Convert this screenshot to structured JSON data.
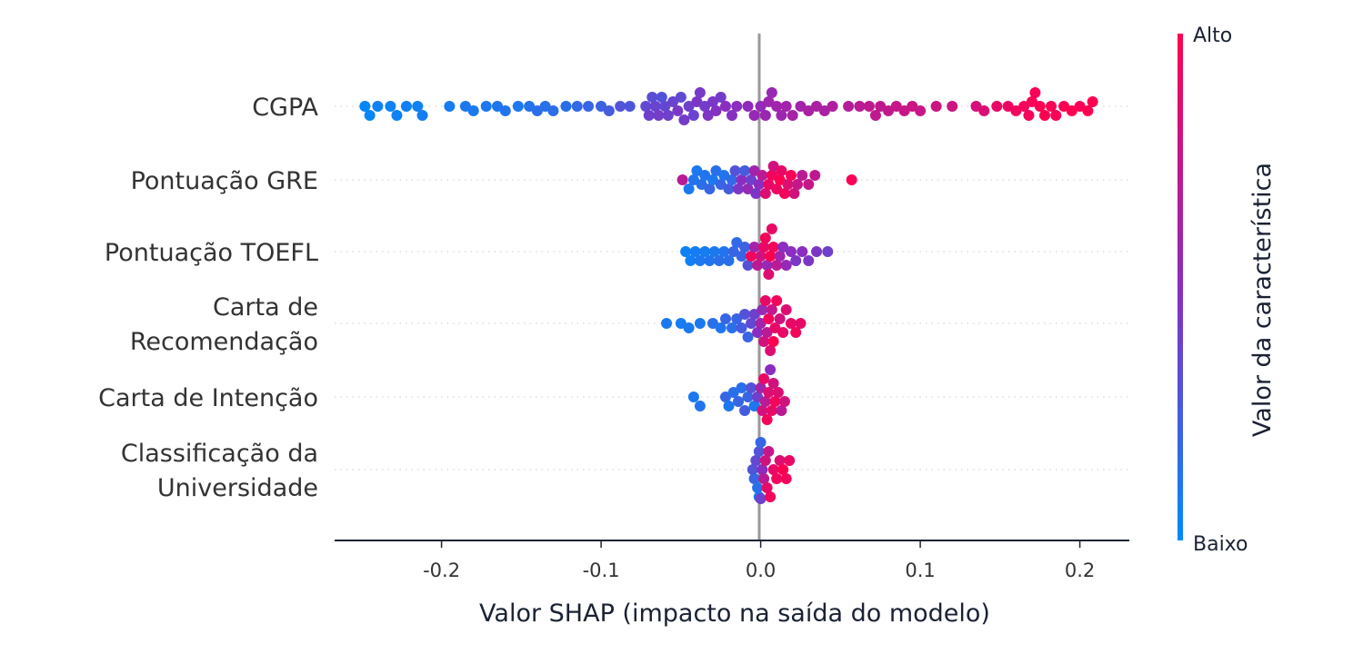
{
  "chart_data": {
    "type": "scatter",
    "subtype": "beeswarm",
    "xlabel": "Valor SHAP (impacto na saída do modelo)",
    "xlim": [
      -0.267,
      0.231
    ],
    "xticks": [
      "-0.2",
      "-0.1",
      "0.0",
      "0.1",
      "0.2"
    ],
    "xtick_values": [
      -0.2,
      -0.1,
      0.0,
      0.1,
      0.2
    ],
    "grid": false,
    "colorbar": {
      "label": "Valor da característica",
      "high": "Alto",
      "low": "Baixo",
      "low_color": "#008bfb",
      "mid_color": "#8a2dc0",
      "high_color": "#ff0051"
    },
    "features": [
      {
        "name": "CGPA",
        "label_lines": [
          "CGPA"
        ],
        "points": [
          [
            -0.248,
            0.02
          ],
          [
            -0.245,
            0.03
          ],
          [
            -0.24,
            0.05
          ],
          [
            -0.232,
            0.04
          ],
          [
            -0.228,
            0.05
          ],
          [
            -0.222,
            0.06
          ],
          [
            -0.215,
            0.05
          ],
          [
            -0.212,
            0.07
          ],
          [
            -0.195,
            0.08
          ],
          [
            -0.185,
            0.1
          ],
          [
            -0.18,
            0.09
          ],
          [
            -0.172,
            0.1
          ],
          [
            -0.165,
            0.11
          ],
          [
            -0.16,
            0.12
          ],
          [
            -0.152,
            0.1
          ],
          [
            -0.145,
            0.13
          ],
          [
            -0.14,
            0.15
          ],
          [
            -0.135,
            0.14
          ],
          [
            -0.13,
            0.16
          ],
          [
            -0.122,
            0.15
          ],
          [
            -0.115,
            0.18
          ],
          [
            -0.108,
            0.2
          ],
          [
            -0.1,
            0.22
          ],
          [
            -0.095,
            0.25
          ],
          [
            -0.088,
            0.3
          ],
          [
            -0.082,
            0.28
          ],
          [
            -0.072,
            0.35
          ],
          [
            -0.07,
            0.4
          ],
          [
            -0.068,
            0.33
          ],
          [
            -0.066,
            0.38
          ],
          [
            -0.064,
            0.42
          ],
          [
            -0.062,
            0.3
          ],
          [
            -0.06,
            0.36
          ],
          [
            -0.058,
            0.4
          ],
          [
            -0.055,
            0.38
          ],
          [
            -0.052,
            0.44
          ],
          [
            -0.05,
            0.35
          ],
          [
            -0.048,
            0.42
          ],
          [
            -0.045,
            0.4
          ],
          [
            -0.042,
            0.38
          ],
          [
            -0.04,
            0.45
          ],
          [
            -0.038,
            0.43
          ],
          [
            -0.035,
            0.42
          ],
          [
            -0.033,
            0.46
          ],
          [
            -0.03,
            0.44
          ],
          [
            -0.028,
            0.48
          ],
          [
            -0.025,
            0.42
          ],
          [
            -0.022,
            0.5
          ],
          [
            -0.018,
            0.48
          ],
          [
            -0.015,
            0.5
          ],
          [
            -0.008,
            0.52
          ],
          [
            -0.004,
            0.55
          ],
          [
            0.0,
            0.54
          ],
          [
            0.003,
            0.57
          ],
          [
            0.005,
            0.58
          ],
          [
            0.007,
            0.56
          ],
          [
            0.01,
            0.6
          ],
          [
            0.013,
            0.58
          ],
          [
            0.016,
            0.6
          ],
          [
            0.02,
            0.62
          ],
          [
            0.025,
            0.6
          ],
          [
            0.03,
            0.63
          ],
          [
            0.035,
            0.64
          ],
          [
            0.04,
            0.63
          ],
          [
            0.045,
            0.65
          ],
          [
            0.055,
            0.68
          ],
          [
            0.062,
            0.7
          ],
          [
            0.068,
            0.72
          ],
          [
            0.072,
            0.73
          ],
          [
            0.075,
            0.72
          ],
          [
            0.08,
            0.74
          ],
          [
            0.085,
            0.75
          ],
          [
            0.09,
            0.76
          ],
          [
            0.095,
            0.77
          ],
          [
            0.1,
            0.76
          ],
          [
            0.11,
            0.78
          ],
          [
            0.12,
            0.78
          ],
          [
            0.135,
            0.82
          ],
          [
            0.14,
            0.84
          ],
          [
            0.148,
            0.9
          ],
          [
            0.155,
            0.92
          ],
          [
            0.16,
            0.94
          ],
          [
            0.165,
            0.95
          ],
          [
            0.168,
            0.96
          ],
          [
            0.17,
            0.98
          ],
          [
            0.172,
            0.97
          ],
          [
            0.175,
            0.99
          ],
          [
            0.178,
            1.0
          ],
          [
            0.182,
            0.98
          ],
          [
            0.185,
            0.97
          ],
          [
            0.19,
            0.99
          ],
          [
            0.195,
            1.0
          ],
          [
            0.2,
            0.98
          ],
          [
            0.205,
            1.0
          ],
          [
            0.208,
            1.0
          ]
        ]
      },
      {
        "name": "Pontuação GRE",
        "label_lines": [
          "Pontuação GRE"
        ],
        "points": [
          [
            -0.049,
            0.7
          ],
          [
            -0.045,
            0.1
          ],
          [
            -0.042,
            0.12
          ],
          [
            -0.04,
            0.1
          ],
          [
            -0.037,
            0.15
          ],
          [
            -0.035,
            0.12
          ],
          [
            -0.032,
            0.2
          ],
          [
            -0.03,
            0.1
          ],
          [
            -0.028,
            0.15
          ],
          [
            -0.025,
            0.2
          ],
          [
            -0.023,
            0.12
          ],
          [
            -0.02,
            0.25
          ],
          [
            -0.018,
            0.18
          ],
          [
            -0.016,
            0.3
          ],
          [
            -0.014,
            0.45
          ],
          [
            -0.012,
            0.5
          ],
          [
            -0.01,
            0.25
          ],
          [
            -0.008,
            0.55
          ],
          [
            -0.006,
            0.4
          ],
          [
            -0.004,
            0.6
          ],
          [
            -0.003,
            0.45
          ],
          [
            -0.001,
            0.5
          ],
          [
            0.001,
            0.7
          ],
          [
            0.003,
            0.85
          ],
          [
            0.005,
            0.9
          ],
          [
            0.007,
            0.95
          ],
          [
            0.008,
            0.8
          ],
          [
            0.01,
            0.92
          ],
          [
            0.012,
            1.0
          ],
          [
            0.013,
            0.9
          ],
          [
            0.015,
            0.95
          ],
          [
            0.017,
            0.85
          ],
          [
            0.019,
            0.98
          ],
          [
            0.021,
            0.8
          ],
          [
            0.023,
            0.75
          ],
          [
            0.026,
            0.7
          ],
          [
            0.03,
            0.75
          ],
          [
            0.034,
            0.72
          ],
          [
            0.057,
            0.98
          ]
        ]
      },
      {
        "name": "Pontuação TOEFL",
        "label_lines": [
          "Pontuação TOEFL"
        ],
        "points": [
          [
            -0.047,
            0.05
          ],
          [
            -0.044,
            0.06
          ],
          [
            -0.041,
            0.08
          ],
          [
            -0.038,
            0.1
          ],
          [
            -0.035,
            0.08
          ],
          [
            -0.032,
            0.12
          ],
          [
            -0.029,
            0.1
          ],
          [
            -0.026,
            0.15
          ],
          [
            -0.023,
            0.12
          ],
          [
            -0.02,
            0.15
          ],
          [
            -0.017,
            0.2
          ],
          [
            -0.015,
            0.18
          ],
          [
            -0.012,
            0.2
          ],
          [
            -0.01,
            0.22
          ],
          [
            -0.008,
            0.3
          ],
          [
            -0.006,
            0.95
          ],
          [
            -0.004,
            0.6
          ],
          [
            -0.002,
            0.7
          ],
          [
            0.0,
            0.8
          ],
          [
            0.002,
            0.9
          ],
          [
            0.003,
            0.95
          ],
          [
            0.004,
            0.55
          ],
          [
            0.005,
            0.85
          ],
          [
            0.006,
            1.0
          ],
          [
            0.007,
            0.9
          ],
          [
            0.008,
            0.95
          ],
          [
            0.01,
            0.7
          ],
          [
            0.012,
            0.6
          ],
          [
            0.014,
            0.5
          ],
          [
            0.016,
            0.55
          ],
          [
            0.019,
            0.5
          ],
          [
            0.022,
            0.45
          ],
          [
            0.026,
            0.5
          ],
          [
            0.03,
            0.45
          ],
          [
            0.035,
            0.45
          ],
          [
            0.042,
            0.4
          ]
        ]
      },
      {
        "name": "Carta de Recomendação",
        "label_lines": [
          "Carta de",
          "Recomendação"
        ],
        "points": [
          [
            -0.059,
            0.1
          ],
          [
            -0.05,
            0.08
          ],
          [
            -0.045,
            0.1
          ],
          [
            -0.038,
            0.1
          ],
          [
            -0.03,
            0.15
          ],
          [
            -0.025,
            0.12
          ],
          [
            -0.022,
            0.2
          ],
          [
            -0.018,
            0.15
          ],
          [
            -0.015,
            0.2
          ],
          [
            -0.012,
            0.25
          ],
          [
            -0.01,
            0.3
          ],
          [
            -0.008,
            0.2
          ],
          [
            -0.006,
            0.35
          ],
          [
            -0.004,
            0.4
          ],
          [
            -0.002,
            0.5
          ],
          [
            0.0,
            0.6
          ],
          [
            0.001,
            0.55
          ],
          [
            0.002,
            0.8
          ],
          [
            0.003,
            0.9
          ],
          [
            0.004,
            0.7
          ],
          [
            0.005,
            0.95
          ],
          [
            0.006,
            0.85
          ],
          [
            0.007,
            0.75
          ],
          [
            0.008,
            1.0
          ],
          [
            0.009,
            0.9
          ],
          [
            0.01,
            0.95
          ],
          [
            0.012,
            0.8
          ],
          [
            0.014,
            0.9
          ],
          [
            0.016,
            0.85
          ],
          [
            0.019,
            0.9
          ],
          [
            0.022,
            0.95
          ],
          [
            0.025,
            0.9
          ]
        ]
      },
      {
        "name": "Carta de Intenção",
        "label_lines": [
          "Carta de Intenção"
        ],
        "points": [
          [
            -0.042,
            0.1
          ],
          [
            -0.038,
            0.12
          ],
          [
            -0.022,
            0.2
          ],
          [
            -0.02,
            0.1
          ],
          [
            -0.017,
            0.15
          ],
          [
            -0.014,
            0.2
          ],
          [
            -0.012,
            0.15
          ],
          [
            -0.01,
            0.25
          ],
          [
            -0.008,
            0.2
          ],
          [
            -0.006,
            0.3
          ],
          [
            -0.004,
            0.1
          ],
          [
            -0.002,
            0.4
          ],
          [
            0.0,
            0.6
          ],
          [
            0.001,
            0.8
          ],
          [
            0.002,
            0.9
          ],
          [
            0.003,
            0.7
          ],
          [
            0.004,
            0.95
          ],
          [
            0.005,
            0.85
          ],
          [
            0.006,
            0.5
          ],
          [
            0.007,
            0.9
          ],
          [
            0.008,
            0.8
          ],
          [
            0.009,
            0.95
          ],
          [
            0.011,
            0.85
          ],
          [
            0.013,
            0.7
          ],
          [
            0.015,
            0.8
          ]
        ]
      },
      {
        "name": "Classificação da Universidade",
        "label_lines": [
          "Classificação da",
          "Universidade"
        ],
        "points": [
          [
            -0.005,
            0.3
          ],
          [
            -0.004,
            0.2
          ],
          [
            -0.003,
            0.35
          ],
          [
            -0.002,
            0.15
          ],
          [
            -0.001,
            0.3
          ],
          [
            0.0,
            0.2
          ],
          [
            -0.001,
            0.1
          ],
          [
            0.0,
            0.4
          ],
          [
            0.001,
            0.5
          ],
          [
            0.002,
            0.7
          ],
          [
            0.003,
            0.8
          ],
          [
            0.004,
            0.9
          ],
          [
            0.005,
            0.75
          ],
          [
            0.006,
            0.95
          ],
          [
            0.008,
            0.9
          ],
          [
            0.01,
            0.95
          ],
          [
            0.012,
            0.85
          ],
          [
            0.014,
            1.0
          ],
          [
            0.016,
            0.95
          ],
          [
            0.018,
            0.9
          ]
        ]
      }
    ]
  }
}
